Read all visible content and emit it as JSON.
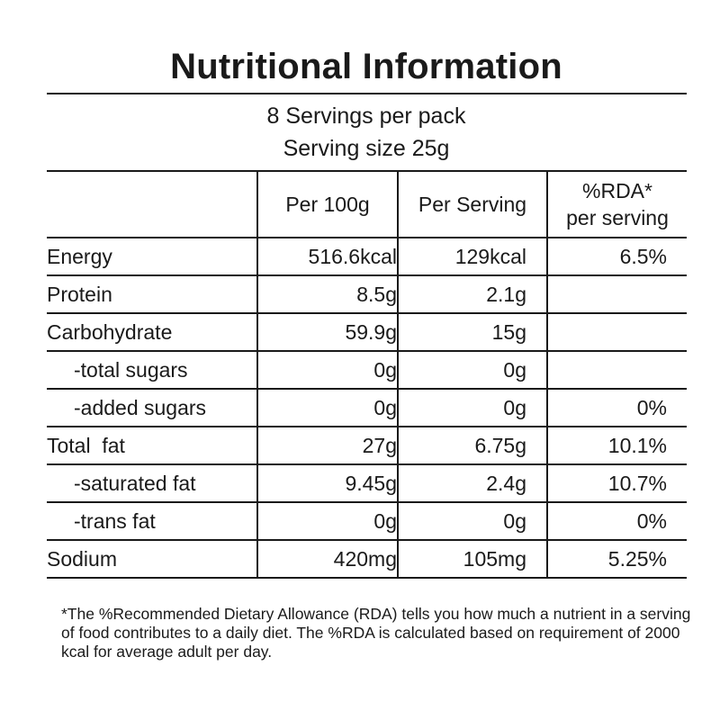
{
  "title": "Nutritional Information",
  "servings_per_pack": "8 Servings per pack",
  "serving_size": "Serving size 25g",
  "columns": {
    "blank": "",
    "per100": "Per 100g",
    "per_serving": "Per Serving",
    "rda_line1": "%RDA*",
    "rda_line2": "per serving"
  },
  "rows": [
    {
      "name": "Energy",
      "per100": "516.6kcal",
      "serving": "129kcal",
      "rda": "6.5%"
    },
    {
      "name": "Protein",
      "per100": "8.5g",
      "serving": "2.1g",
      "rda": ""
    },
    {
      "name": "Carbohydrate",
      "per100": "59.9g",
      "serving": "15g",
      "rda": ""
    },
    {
      "name": "-total sugars",
      "per100": "0g",
      "serving": "0g",
      "rda": ""
    },
    {
      "name": "-added sugars",
      "per100": "0g",
      "serving": "0g",
      "rda": "0%"
    },
    {
      "name": "Total  fat",
      "per100": "27g",
      "serving": "6.75g",
      "rda": "10.1%"
    },
    {
      "name": "-saturated fat",
      "per100": "9.45g",
      "serving": "2.4g",
      "rda": "10.7%"
    },
    {
      "name": "-trans fat",
      "per100": "0g",
      "serving": "0g",
      "rda": "0%"
    },
    {
      "name": "Sodium",
      "per100": "420mg",
      "serving": "105mg",
      "rda": "5.25%"
    }
  ],
  "footnote": "*The %Recommended Dietary Allowance (RDA) tells you how much a nutrient in a serving of food contributes to a daily diet. The %RDA is calculated based on requirement of 2000 kcal for average adult per day."
}
